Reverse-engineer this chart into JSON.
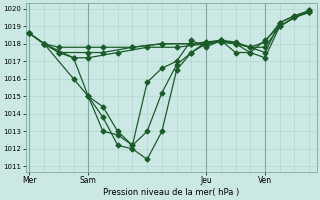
{
  "bg_color": "#cce8e4",
  "grid_color": "#aad4cc",
  "line_color": "#1a5c28",
  "xlabel": "Pression niveau de la mer( hPa )",
  "ylim": [
    1011,
    1020
  ],
  "yticks": [
    1011,
    1012,
    1013,
    1014,
    1015,
    1016,
    1017,
    1018,
    1019,
    1020
  ],
  "xtick_labels": [
    "Mer",
    "Sam",
    "Jeu",
    "Ven"
  ],
  "xtick_positions": [
    0,
    8,
    24,
    32
  ],
  "vline_positions": [
    0,
    8,
    24,
    32
  ],
  "series": [
    {
      "x": [
        0,
        2,
        4,
        8,
        10,
        14,
        18,
        22,
        24,
        26,
        28,
        30,
        32,
        34,
        36,
        38
      ],
      "y": [
        1018.6,
        1018.0,
        1017.8,
        1017.8,
        1017.8,
        1017.8,
        1018.0,
        1018.0,
        1018.1,
        1018.2,
        1018.1,
        1017.8,
        1017.5,
        1019.2,
        1019.6,
        1019.8
      ],
      "marker": "D",
      "markersize": 2.5,
      "linewidth": 0.9
    },
    {
      "x": [
        0,
        2,
        4,
        8,
        10,
        14,
        18,
        22,
        24,
        26,
        28,
        30,
        32,
        34,
        36,
        38
      ],
      "y": [
        1018.6,
        1018.0,
        1017.5,
        1017.5,
        1017.5,
        1017.8,
        1018.0,
        1018.0,
        1018.0,
        1018.1,
        1018.0,
        1017.5,
        1017.2,
        1019.0,
        1019.5,
        1019.8
      ],
      "marker": "D",
      "markersize": 2.5,
      "linewidth": 0.9
    },
    {
      "x": [
        0,
        2,
        4,
        6,
        8,
        12,
        16,
        20,
        24,
        26,
        28,
        30,
        32,
        34,
        36,
        38
      ],
      "y": [
        1018.6,
        1018.0,
        1017.5,
        1017.2,
        1017.2,
        1017.5,
        1017.8,
        1017.8,
        1018.0,
        1018.1,
        1018.0,
        1017.8,
        1017.8,
        1019.0,
        1019.5,
        1019.8
      ],
      "marker": "D",
      "markersize": 2.5,
      "linewidth": 0.9
    },
    {
      "x": [
        0,
        2,
        6,
        8,
        10,
        12,
        14,
        16,
        18,
        20,
        22,
        24,
        26,
        28,
        30,
        32,
        34,
        36,
        38
      ],
      "y": [
        1018.6,
        1018.0,
        1017.2,
        1015.0,
        1014.4,
        1013.0,
        1012.2,
        1015.8,
        1016.6,
        1017.0,
        1018.2,
        1017.8,
        1018.2,
        1017.5,
        1017.5,
        1018.2,
        1019.0,
        1019.5,
        1019.9
      ],
      "marker": "D",
      "markersize": 2.5,
      "linewidth": 0.9
    },
    {
      "x": [
        2,
        6,
        8,
        10,
        12,
        14,
        16,
        18,
        20,
        22,
        24,
        26,
        28,
        30,
        32,
        34,
        36,
        38
      ],
      "y": [
        1018.0,
        1016.0,
        1015.0,
        1013.0,
        1012.8,
        1012.2,
        1013.0,
        1015.2,
        1016.8,
        1017.5,
        1018.0,
        1018.2,
        1018.0,
        1017.8,
        1018.1,
        1019.2,
        1019.6,
        1019.9
      ],
      "marker": "D",
      "markersize": 2.5,
      "linewidth": 0.9
    },
    {
      "x": [
        8,
        10,
        12,
        14,
        16,
        18,
        20,
        22,
        24
      ],
      "y": [
        1015.0,
        1013.8,
        1012.2,
        1012.0,
        1011.4,
        1013.0,
        1016.5,
        1017.5,
        1018.1
      ],
      "marker": "D",
      "markersize": 2.5,
      "linewidth": 0.9
    }
  ]
}
